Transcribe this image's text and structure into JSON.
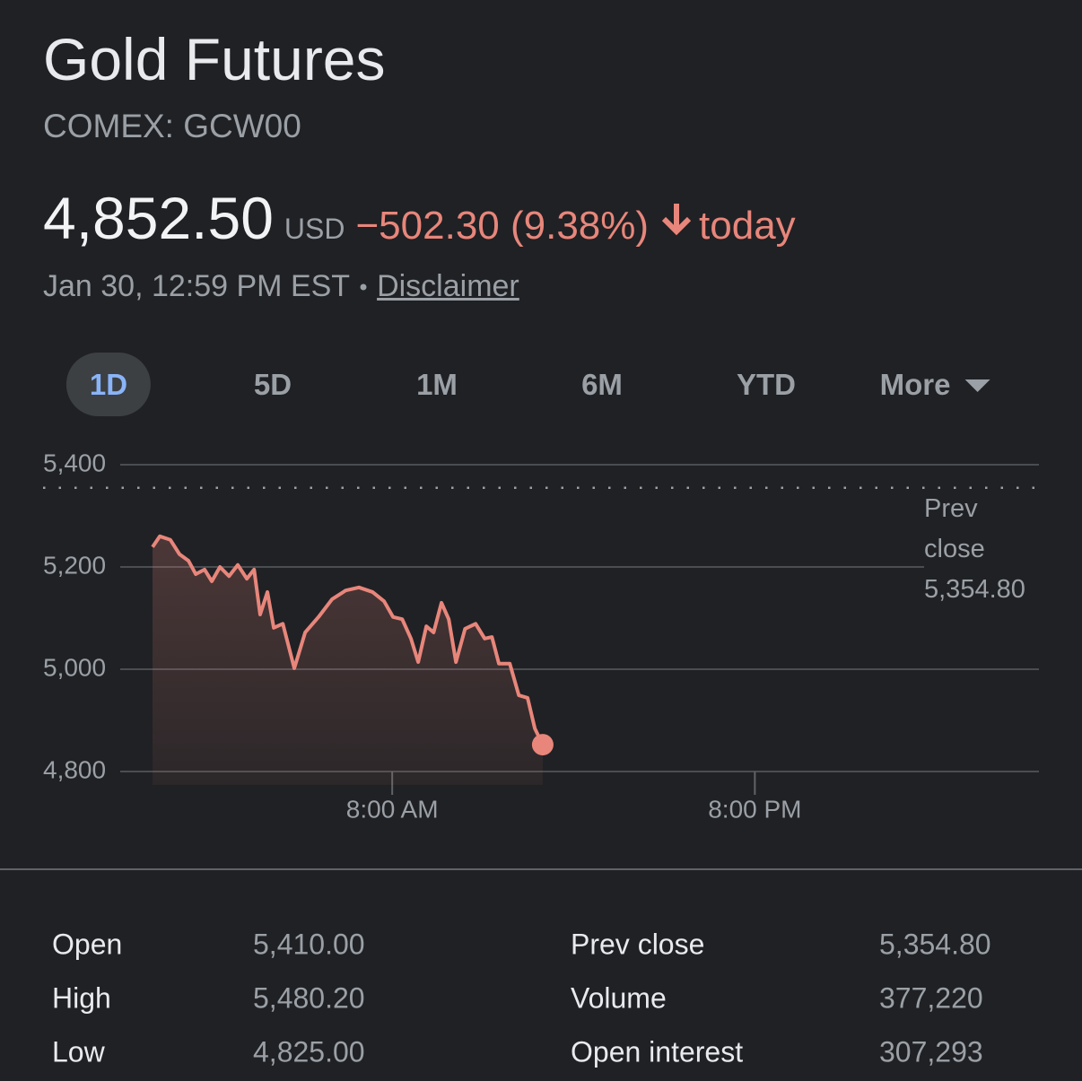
{
  "header": {
    "title": "Gold Futures",
    "symbol": "COMEX: GCW00",
    "price": "4,852.50",
    "currency": "USD",
    "change": "−502.30 (9.38%)",
    "period": "today",
    "timestamp": "Jan 30, 12:59 PM EST",
    "disclaimer": "Disclaimer"
  },
  "tabs": {
    "items": [
      "1D",
      "5D",
      "1M",
      "6M",
      "YTD",
      "More"
    ],
    "selected": 0
  },
  "chart_data": {
    "type": "line",
    "color": "#e8867b",
    "x": [
      0.07,
      0.31,
      0.66,
      0.96,
      1.26,
      1.5,
      1.79,
      2.03,
      2.3,
      2.6,
      2.89,
      3.19,
      3.43,
      3.63,
      3.87,
      4.08,
      4.38,
      4.76,
      5.12,
      5.56,
      6.01,
      6.46,
      6.9,
      7.35,
      7.73,
      8.03,
      8.33,
      8.62,
      8.86,
      9.13,
      9.37,
      9.63,
      9.87,
      10.11,
      10.41,
      10.76,
      11.06,
      11.3,
      11.53,
      11.89,
      12.19,
      12.48,
      12.72,
      12.98
    ],
    "values": [
      5239,
      5260,
      5253,
      5225,
      5212,
      5186,
      5195,
      5172,
      5200,
      5182,
      5204,
      5177,
      5195,
      5107,
      5151,
      5081,
      5089,
      5002,
      5072,
      5102,
      5137,
      5154,
      5160,
      5151,
      5133,
      5102,
      5098,
      5060,
      5014,
      5084,
      5072,
      5130,
      5098,
      5014,
      5079,
      5089,
      5060,
      5063,
      5011,
      5011,
      4949,
      4944,
      4884,
      4852.5
    ],
    "xlim": [
      -1,
      29.4
    ],
    "xticks": [
      {
        "value": 8,
        "label": "8:00 AM"
      },
      {
        "value": 20,
        "label": "8:00 PM"
      }
    ],
    "ylim": [
      4800,
      5400
    ],
    "yticks": [
      {
        "value": 4800,
        "label": "4,800"
      },
      {
        "value": 5000,
        "label": "5,000"
      },
      {
        "value": 5200,
        "label": "5,200"
      },
      {
        "value": 5400,
        "label": "5,400"
      }
    ],
    "grid": true,
    "reference_line": {
      "label": "Prev close",
      "value": 5354.8,
      "value_label": "5,354.80"
    }
  },
  "stats": {
    "rows": [
      [
        "Open",
        "5,410.00",
        "Prev close",
        "5,354.80"
      ],
      [
        "High",
        "5,480.20",
        "Volume",
        "377,220"
      ],
      [
        "Low",
        "4,825.00",
        "Open interest",
        "307,293"
      ]
    ]
  }
}
